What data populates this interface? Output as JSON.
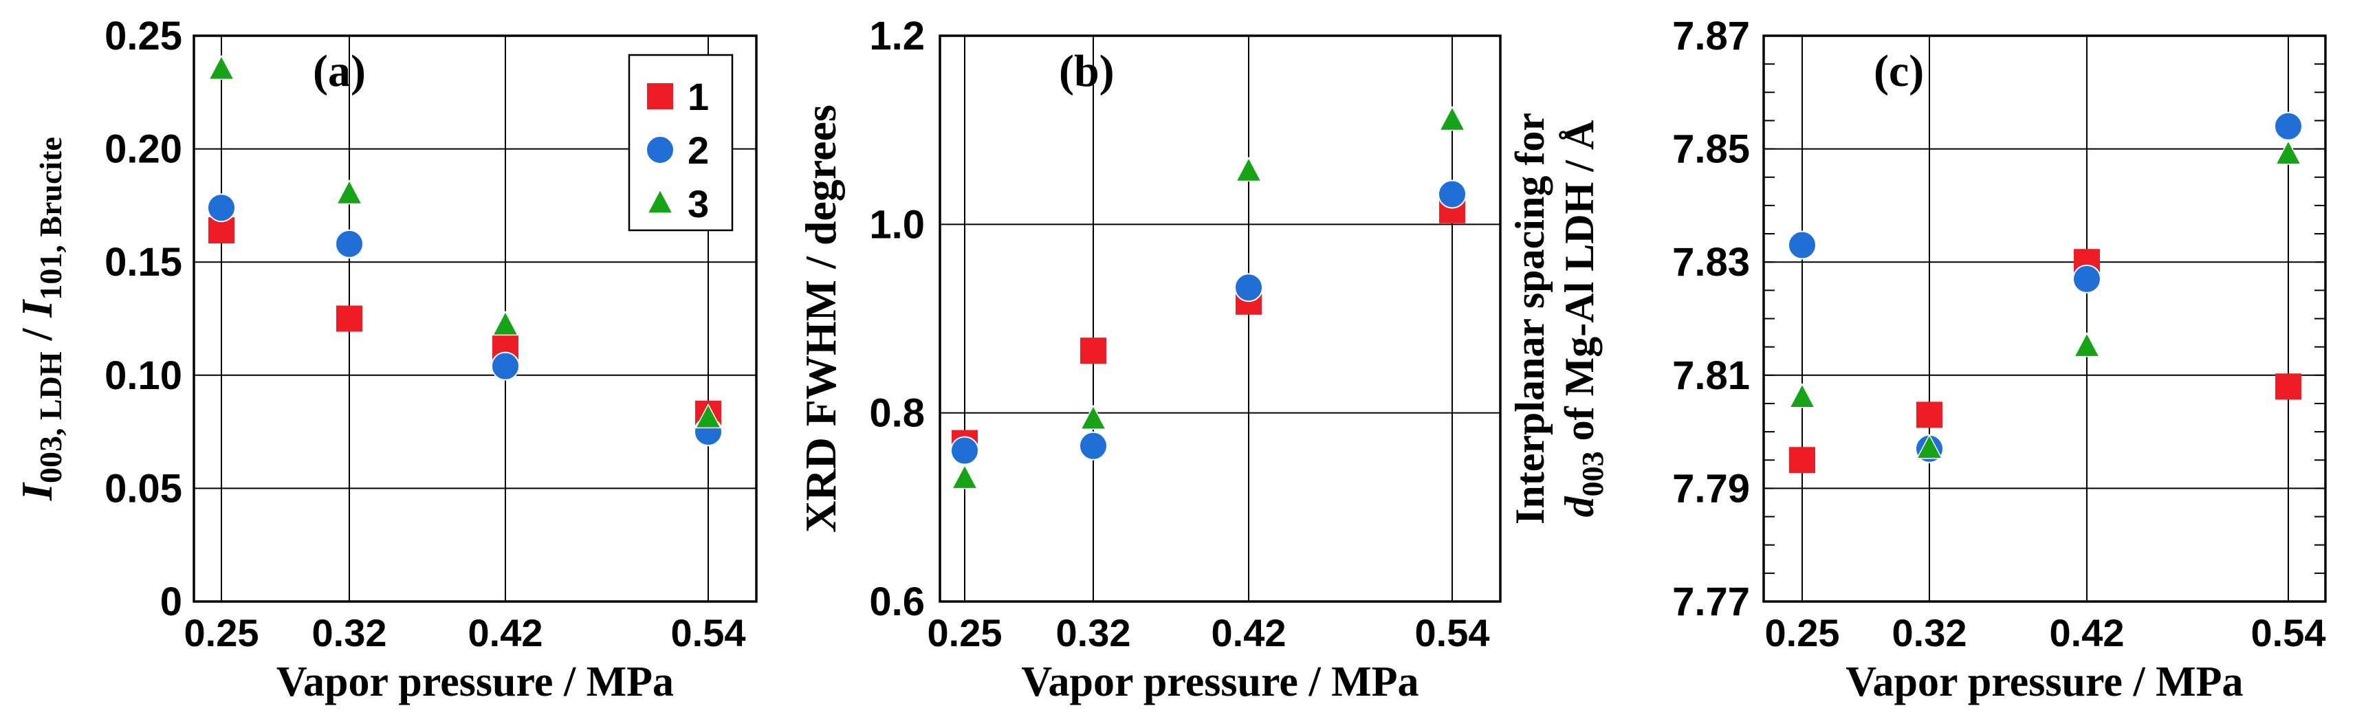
{
  "figure": {
    "colors": {
      "series1": "#ee1c25",
      "series2": "#1f6fd6",
      "series3": "#17a317",
      "grid": "#000000",
      "frame": "#000000"
    },
    "legend": [
      {
        "label": "1",
        "marker": "square"
      },
      {
        "label": "2",
        "marker": "circle"
      },
      {
        "label": "3",
        "marker": "triangle"
      }
    ]
  },
  "chart_data": [
    {
      "type": "scatter",
      "panel_label": "(a)",
      "categories": [
        "0.25",
        "0.32",
        "0.42",
        "0.54"
      ],
      "xlabel": "Vapor pressure / MPa",
      "ylabel": {
        "I": "I",
        "sub1": "003, LDH",
        "slash": " / ",
        "I2": "I",
        "sub2": "101, Brucite"
      },
      "ylim": [
        0,
        0.25
      ],
      "yticks": [
        "0",
        "0.05",
        "0.10",
        "0.15",
        "0.20",
        "0.25"
      ],
      "ytick_values": [
        0,
        0.05,
        0.1,
        0.15,
        0.2,
        0.25
      ],
      "minor_step": null,
      "legend_placement": "top-right",
      "series": [
        {
          "name": "1",
          "marker": "square",
          "values": [
            0.164,
            0.125,
            0.112,
            0.083
          ]
        },
        {
          "name": "2",
          "marker": "circle",
          "values": [
            0.174,
            0.158,
            0.104,
            0.075
          ]
        },
        {
          "name": "3",
          "marker": "triangle",
          "values": [
            0.235,
            0.18,
            0.122,
            0.081
          ]
        }
      ]
    },
    {
      "type": "scatter",
      "panel_label": "(b)",
      "categories": [
        "0.25",
        "0.32",
        "0.42",
        "0.54"
      ],
      "xlabel": "Vapor pressure / MPa",
      "ylabel": "XRD FWHM / degrees",
      "ylim": [
        0.6,
        1.2
      ],
      "yticks": [
        "0.6",
        "0.8",
        "1.0",
        "1.2"
      ],
      "ytick_values": [
        0.6,
        0.8,
        1.0,
        1.2
      ],
      "minor_step": null,
      "series": [
        {
          "name": "1",
          "marker": "square",
          "values": [
            0.768,
            0.866,
            0.918,
            1.015
          ]
        },
        {
          "name": "2",
          "marker": "circle",
          "values": [
            0.76,
            0.765,
            0.933,
            1.032
          ]
        },
        {
          "name": "3",
          "marker": "triangle",
          "values": [
            0.73,
            0.793,
            1.056,
            1.11
          ]
        }
      ]
    },
    {
      "type": "scatter",
      "panel_label": "(c)",
      "categories": [
        "0.25",
        "0.32",
        "0.42",
        "0.54"
      ],
      "xlabel": "Vapor pressure / MPa",
      "ylabel": {
        "line1": "Interplanar spacing for",
        "d": "d",
        "sub": "003",
        "rest": " of Mg-Al LDH / ",
        "unit": "Å"
      },
      "ylim": [
        7.77,
        7.87
      ],
      "yticks": [
        "7.77",
        "7.79",
        "7.81",
        "7.83",
        "7.85",
        "7.87"
      ],
      "ytick_values": [
        7.77,
        7.79,
        7.81,
        7.83,
        7.85,
        7.87
      ],
      "minor_step": 0.005,
      "series": [
        {
          "name": "1",
          "marker": "square",
          "values": [
            7.795,
            7.803,
            7.83,
            7.808
          ]
        },
        {
          "name": "2",
          "marker": "circle",
          "values": [
            7.833,
            7.797,
            7.827,
            7.854
          ]
        },
        {
          "name": "3",
          "marker": "triangle",
          "values": [
            7.806,
            7.797,
            7.815,
            7.849
          ]
        }
      ]
    }
  ]
}
